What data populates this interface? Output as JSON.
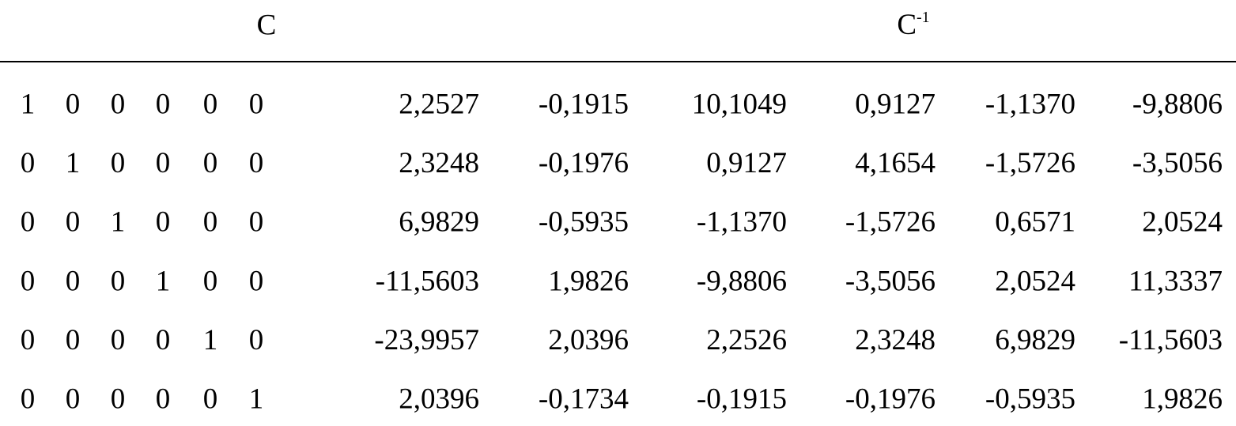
{
  "header": {
    "left": "C",
    "right": {
      "base": "C",
      "sup": "-1"
    }
  },
  "table": {
    "rows": [
      {
        "left": [
          "1",
          "0",
          "0",
          "0",
          "0",
          "0"
        ],
        "right": [
          "2,2527",
          "-0,1915",
          "10,1049",
          "0,9127",
          "-1,1370",
          "-9,8806"
        ]
      },
      {
        "left": [
          "0",
          "1",
          "0",
          "0",
          "0",
          "0"
        ],
        "right": [
          "2,3248",
          "-0,1976",
          "0,9127",
          "4,1654",
          "-1,5726",
          "-3,5056"
        ]
      },
      {
        "left": [
          "0",
          "0",
          "1",
          "0",
          "0",
          "0"
        ],
        "right": [
          "6,9829",
          "-0,5935",
          "-1,1370",
          "-1,5726",
          "0,6571",
          "2,0524"
        ]
      },
      {
        "left": [
          "0",
          "0",
          "0",
          "1",
          "0",
          "0"
        ],
        "right": [
          "-11,5603",
          "1,9826",
          "-9,8806",
          "-3,5056",
          "2,0524",
          "11,3337"
        ]
      },
      {
        "left": [
          "0",
          "0",
          "0",
          "0",
          "1",
          "0"
        ],
        "right": [
          "-23,9957",
          "2,0396",
          "2,2526",
          "2,3248",
          "6,9829",
          "-11,5603"
        ]
      },
      {
        "left": [
          "0",
          "0",
          "0",
          "0",
          "0",
          "1"
        ],
        "right": [
          "2,0396",
          "-0,1734",
          "-0,1915",
          "-0,1976",
          "-0,5935",
          "1,9826"
        ]
      }
    ]
  }
}
